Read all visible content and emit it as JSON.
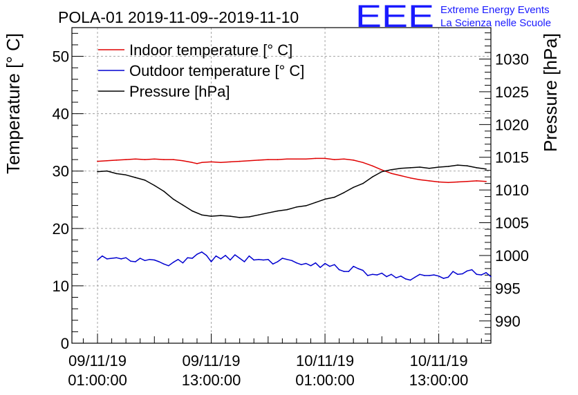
{
  "chart_data": {
    "type": "line",
    "title": "POLA-01 2019-11-09--2019-11-10",
    "logo": {
      "mark": "EEE",
      "line1": "Extreme Energy Events",
      "line2": "La Scienza nelle Scuole"
    },
    "ylabel_left": "Temperature [° C]",
    "ylabel_right": "Pressure [hPa]",
    "xlim_hours": [
      -2.7,
      41.5
    ],
    "ylim_left": [
      0,
      55
    ],
    "ylim_right": [
      986.6,
      1034.8
    ],
    "x_ticks": [
      {
        "hour": 0,
        "date": "09/11/19",
        "time": "01:00:00"
      },
      {
        "hour": 12,
        "date": "09/11/19",
        "time": "13:00:00"
      },
      {
        "hour": 24,
        "date": "10/11/19",
        "time": "01:00:00"
      },
      {
        "hour": 36,
        "date": "10/11/19",
        "time": "13:00:00"
      }
    ],
    "y_ticks_left": [
      0,
      10,
      20,
      30,
      40,
      50
    ],
    "y_ticks_right": [
      990,
      995,
      1000,
      1005,
      1010,
      1015,
      1020,
      1025,
      1030
    ],
    "grid": true,
    "legend_position": "top-left",
    "series": [
      {
        "name": "Indoor temperature [° C]",
        "axis": "left",
        "color": "#e00000",
        "points": [
          [
            0,
            31.7
          ],
          [
            1,
            31.8
          ],
          [
            2,
            31.9
          ],
          [
            3,
            32.0
          ],
          [
            4,
            32.1
          ],
          [
            5,
            32.0
          ],
          [
            6,
            32.1
          ],
          [
            7,
            32.0
          ],
          [
            8,
            32.0
          ],
          [
            9,
            31.8
          ],
          [
            10,
            31.5
          ],
          [
            10.5,
            31.3
          ],
          [
            11,
            31.5
          ],
          [
            12,
            31.6
          ],
          [
            13,
            31.5
          ],
          [
            14,
            31.6
          ],
          [
            15,
            31.7
          ],
          [
            16,
            31.8
          ],
          [
            17,
            31.9
          ],
          [
            18,
            32.0
          ],
          [
            19,
            32.0
          ],
          [
            20,
            32.1
          ],
          [
            21,
            32.1
          ],
          [
            22,
            32.1
          ],
          [
            23,
            32.2
          ],
          [
            24,
            32.2
          ],
          [
            25,
            32.0
          ],
          [
            26,
            32.1
          ],
          [
            27,
            31.9
          ],
          [
            28,
            31.5
          ],
          [
            29,
            30.9
          ],
          [
            30,
            30.2
          ],
          [
            31,
            29.6
          ],
          [
            32,
            29.2
          ],
          [
            33,
            28.8
          ],
          [
            34,
            28.5
          ],
          [
            35,
            28.3
          ],
          [
            36,
            28.1
          ],
          [
            37,
            28.0
          ],
          [
            38,
            28.1
          ],
          [
            39,
            28.2
          ],
          [
            40,
            28.3
          ],
          [
            41,
            28.2
          ]
        ]
      },
      {
        "name": "Outdoor temperature [° C]",
        "axis": "left",
        "color": "#0000d0",
        "points": [
          [
            0,
            14.5
          ],
          [
            0.5,
            15.2
          ],
          [
            1,
            14.7
          ],
          [
            2,
            14.9
          ],
          [
            2.5,
            14.7
          ],
          [
            3,
            14.9
          ],
          [
            3.5,
            14.3
          ],
          [
            4,
            14.2
          ],
          [
            4.5,
            14.8
          ],
          [
            5,
            14.4
          ],
          [
            5.5,
            14.6
          ],
          [
            6,
            14.5
          ],
          [
            6.5,
            14.2
          ],
          [
            7,
            13.8
          ],
          [
            7.5,
            13.5
          ],
          [
            8,
            14.1
          ],
          [
            8.5,
            14.6
          ],
          [
            9,
            14.0
          ],
          [
            9.5,
            14.9
          ],
          [
            10,
            14.8
          ],
          [
            10.5,
            15.5
          ],
          [
            11,
            15.9
          ],
          [
            11.5,
            15.3
          ],
          [
            12,
            14.2
          ],
          [
            12.5,
            15.2
          ],
          [
            13,
            14.7
          ],
          [
            13.5,
            15.3
          ],
          [
            14,
            14.5
          ],
          [
            14.5,
            15.4
          ],
          [
            15,
            14.8
          ],
          [
            15.5,
            14.2
          ],
          [
            16,
            15.2
          ],
          [
            16.5,
            14.5
          ],
          [
            17,
            14.6
          ],
          [
            17.5,
            14.5
          ],
          [
            18,
            14.6
          ],
          [
            18.5,
            13.8
          ],
          [
            19,
            14.2
          ],
          [
            19.5,
            14.8
          ],
          [
            20,
            14.6
          ],
          [
            20.5,
            14.4
          ],
          [
            21,
            14.0
          ],
          [
            21.5,
            13.7
          ],
          [
            22,
            13.9
          ],
          [
            22.5,
            13.5
          ],
          [
            23,
            14.0
          ],
          [
            23.5,
            13.2
          ],
          [
            24,
            13.9
          ],
          [
            24.5,
            13.4
          ],
          [
            25,
            13.7
          ],
          [
            25.5,
            12.8
          ],
          [
            26,
            12.5
          ],
          [
            26.5,
            12.5
          ],
          [
            27,
            13.4
          ],
          [
            27.5,
            13.0
          ],
          [
            28,
            12.7
          ],
          [
            28.5,
            11.8
          ],
          [
            29,
            12.0
          ],
          [
            29.5,
            11.9
          ],
          [
            30,
            12.2
          ],
          [
            30.5,
            11.6
          ],
          [
            31,
            12.0
          ],
          [
            31.5,
            11.4
          ],
          [
            32,
            11.7
          ],
          [
            32.5,
            11.2
          ],
          [
            33,
            11.0
          ],
          [
            33.5,
            11.5
          ],
          [
            34,
            12.0
          ],
          [
            34.5,
            11.8
          ],
          [
            35,
            11.8
          ],
          [
            35.5,
            11.9
          ],
          [
            36,
            11.7
          ],
          [
            36.5,
            11.3
          ],
          [
            37,
            11.5
          ],
          [
            37.5,
            12.5
          ],
          [
            38,
            12.0
          ],
          [
            38.5,
            12.1
          ],
          [
            39,
            12.6
          ],
          [
            39.5,
            12.8
          ],
          [
            40,
            12.0
          ],
          [
            40.5,
            11.9
          ],
          [
            41,
            12.3
          ],
          [
            41.5,
            11.6
          ]
        ]
      },
      {
        "name": "Pressure [hPa]",
        "axis": "right",
        "color": "#000000",
        "points": [
          [
            0,
            1012.8
          ],
          [
            1,
            1012.9
          ],
          [
            2,
            1012.5
          ],
          [
            3,
            1012.3
          ],
          [
            4,
            1011.9
          ],
          [
            5,
            1011.5
          ],
          [
            6,
            1010.7
          ],
          [
            7,
            1009.8
          ],
          [
            8,
            1008.6
          ],
          [
            9,
            1007.7
          ],
          [
            10,
            1006.8
          ],
          [
            11,
            1006.2
          ],
          [
            12,
            1006.0
          ],
          [
            13,
            1006.1
          ],
          [
            14,
            1006.0
          ],
          [
            15,
            1005.8
          ],
          [
            16,
            1005.9
          ],
          [
            17,
            1006.2
          ],
          [
            18,
            1006.5
          ],
          [
            19,
            1006.8
          ],
          [
            20,
            1007.0
          ],
          [
            21,
            1007.4
          ],
          [
            22,
            1007.6
          ],
          [
            23,
            1008.1
          ],
          [
            24,
            1008.6
          ],
          [
            25,
            1008.9
          ],
          [
            26,
            1009.6
          ],
          [
            27,
            1010.4
          ],
          [
            28,
            1011.0
          ],
          [
            29,
            1012.0
          ],
          [
            30,
            1012.8
          ],
          [
            31,
            1013.1
          ],
          [
            32,
            1013.3
          ],
          [
            33,
            1013.4
          ],
          [
            34,
            1013.5
          ],
          [
            35,
            1013.3
          ],
          [
            36,
            1013.5
          ],
          [
            37,
            1013.6
          ],
          [
            38,
            1013.8
          ],
          [
            39,
            1013.7
          ],
          [
            40,
            1013.4
          ],
          [
            41,
            1013.2
          ]
        ]
      }
    ]
  }
}
